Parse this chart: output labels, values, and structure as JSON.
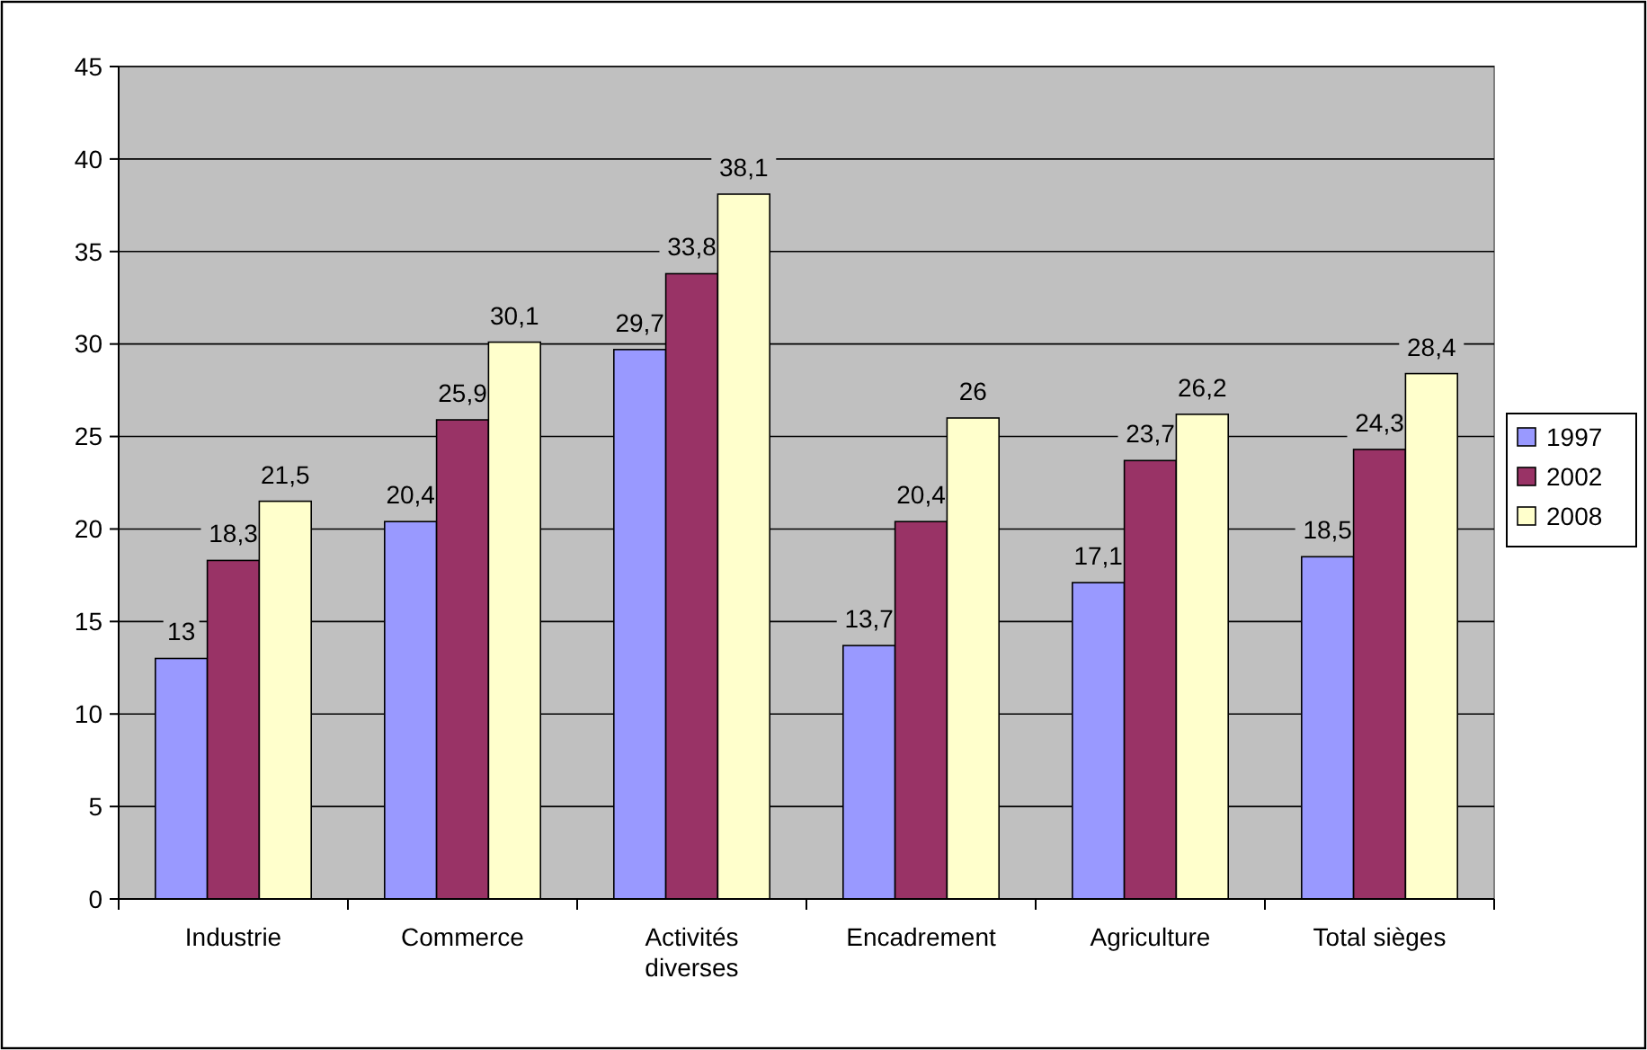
{
  "chart_data": {
    "type": "bar",
    "categories": [
      "Industrie",
      "Commerce",
      "Activités diverses",
      "Encadrement",
      "Agriculture",
      "Total sièges"
    ],
    "series": [
      {
        "name": "1997",
        "color": "#9999ff",
        "values": [
          13,
          20.4,
          29.7,
          13.7,
          17.1,
          18.5
        ],
        "value_labels": [
          "13",
          "20,4",
          "29,7",
          "13,7",
          "17,1",
          "18,5"
        ]
      },
      {
        "name": "2002",
        "color": "#993366",
        "values": [
          18.3,
          25.9,
          33.8,
          20.4,
          23.7,
          24.3
        ],
        "value_labels": [
          "18,3",
          "25,9",
          "33,8",
          "20,4",
          "23,7",
          "24,3"
        ]
      },
      {
        "name": "2008",
        "color": "#ffffcc",
        "values": [
          21.5,
          30.1,
          38.1,
          26,
          26.2,
          28.4
        ],
        "value_labels": [
          "21,5",
          "30,1",
          "38,1",
          "26",
          "26,2",
          "28,4"
        ]
      }
    ],
    "ylim": [
      0,
      45
    ],
    "yticks": [
      0,
      5,
      10,
      15,
      20,
      25,
      30,
      35,
      40,
      45
    ],
    "grid": "y",
    "legend": "right"
  }
}
